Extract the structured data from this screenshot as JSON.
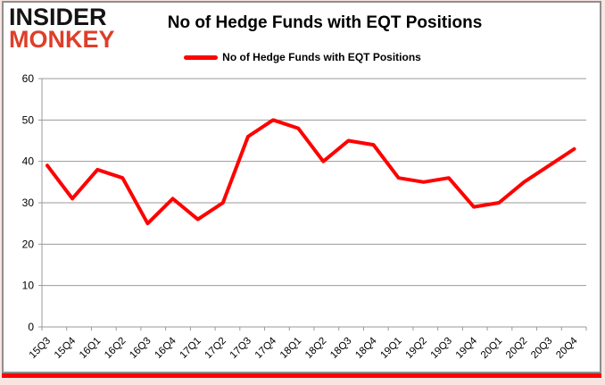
{
  "logo": {
    "line1": "INSIDER",
    "line2": "MONKEY"
  },
  "header": {
    "title": "No of Hedge Funds with EQT Positions"
  },
  "legend": {
    "label": "No of Hedge Funds with EQT Positions"
  },
  "colors": {
    "series_line": "#ff0000",
    "legend_swatch": "#fe0202",
    "grid": "#999999",
    "axis_text": "#000000",
    "logo_black": "#141414",
    "logo_red": "#de3e2a",
    "frame_border": "#8e8e8e",
    "bottom_bar": "#fe0202"
  },
  "chart_data": {
    "type": "line",
    "title": "No of Hedge Funds with EQT Positions",
    "categories": [
      "15Q3",
      "15Q4",
      "16Q1",
      "16Q2",
      "16Q3",
      "16Q4",
      "17Q1",
      "17Q2",
      "17Q3",
      "17Q4",
      "18Q1",
      "18Q2",
      "18Q3",
      "18Q4",
      "19Q1",
      "19Q2",
      "19Q3",
      "19Q4",
      "20Q1",
      "20Q2",
      "20Q3",
      "20Q4"
    ],
    "series": [
      {
        "name": "No of Hedge Funds with EQT Positions",
        "values": [
          39,
          31,
          38,
          36,
          25,
          31,
          26,
          30,
          46,
          50,
          48,
          40,
          45,
          44,
          36,
          35,
          36,
          29,
          30,
          35,
          39,
          43
        ]
      }
    ],
    "xlabel": "",
    "ylabel": "",
    "ylim": [
      0,
      60
    ],
    "yticks": [
      0,
      10,
      20,
      30,
      40,
      50,
      60
    ],
    "grid": true,
    "legend_position": "top"
  }
}
